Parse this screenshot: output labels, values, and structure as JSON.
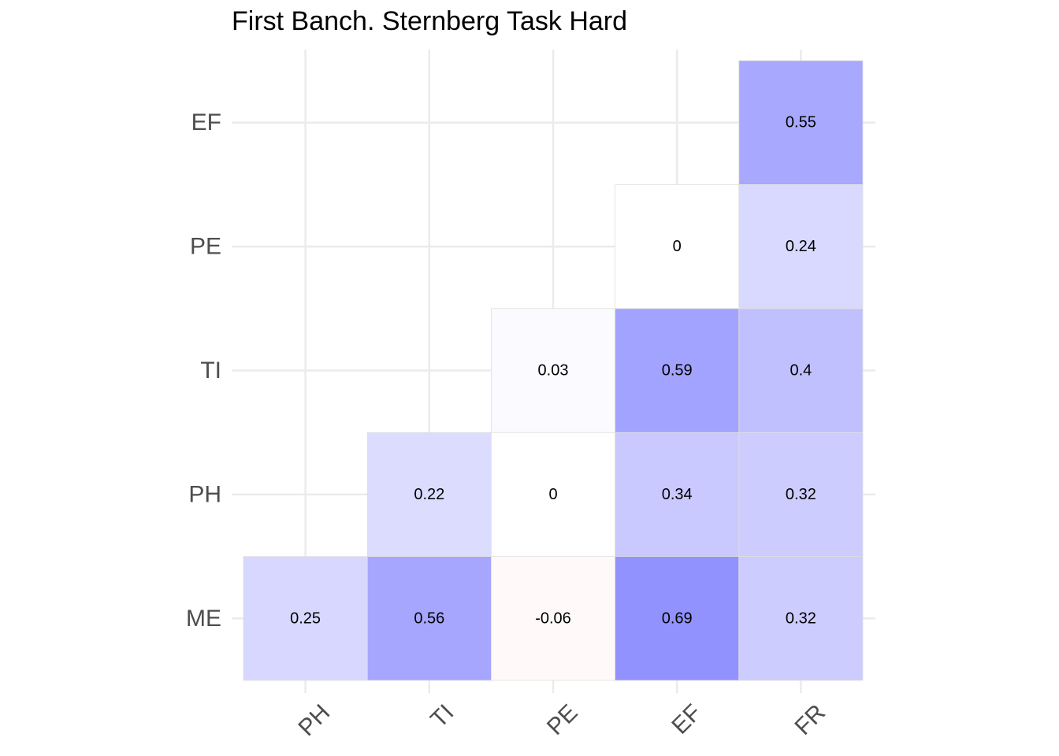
{
  "chart_data": {
    "type": "heatmap",
    "title": "First Banch. Sternberg Task Hard",
    "x_categories": [
      "PH",
      "TI",
      "PE",
      "EF",
      "FR"
    ],
    "y_categories": [
      "ME",
      "PH",
      "TI",
      "PE",
      "EF"
    ],
    "cells": [
      {
        "x": "PH",
        "y": "ME",
        "value": 0.25,
        "label": "0.25"
      },
      {
        "x": "TI",
        "y": "ME",
        "value": 0.56,
        "label": "0.56"
      },
      {
        "x": "PE",
        "y": "ME",
        "value": -0.06,
        "label": "-0.06"
      },
      {
        "x": "EF",
        "y": "ME",
        "value": 0.69,
        "label": "0.69"
      },
      {
        "x": "FR",
        "y": "ME",
        "value": 0.32,
        "label": "0.32"
      },
      {
        "x": "TI",
        "y": "PH",
        "value": 0.22,
        "label": "0.22"
      },
      {
        "x": "PE",
        "y": "PH",
        "value": 0,
        "label": "0"
      },
      {
        "x": "EF",
        "y": "PH",
        "value": 0.34,
        "label": "0.34"
      },
      {
        "x": "FR",
        "y": "PH",
        "value": 0.32,
        "label": "0.32"
      },
      {
        "x": "PE",
        "y": "TI",
        "value": 0.03,
        "label": "0.03"
      },
      {
        "x": "EF",
        "y": "TI",
        "value": 0.59,
        "label": "0.59"
      },
      {
        "x": "FR",
        "y": "TI",
        "value": 0.4,
        "label": "0.4"
      },
      {
        "x": "EF",
        "y": "PE",
        "value": 0,
        "label": "0"
      },
      {
        "x": "FR",
        "y": "PE",
        "value": 0.24,
        "label": "0.24"
      },
      {
        "x": "FR",
        "y": "EF",
        "value": 0.55,
        "label": "0.55"
      }
    ],
    "colors": {
      "positive": "#0000ff",
      "negative": "#ff0000",
      "zero": "#ffffff",
      "grid": "#ebebeb",
      "axis_text": "#4d4d4d",
      "cell_border": "#e0e0e0"
    },
    "value_range": [
      -1,
      1
    ],
    "grid": true,
    "legend": "none"
  }
}
